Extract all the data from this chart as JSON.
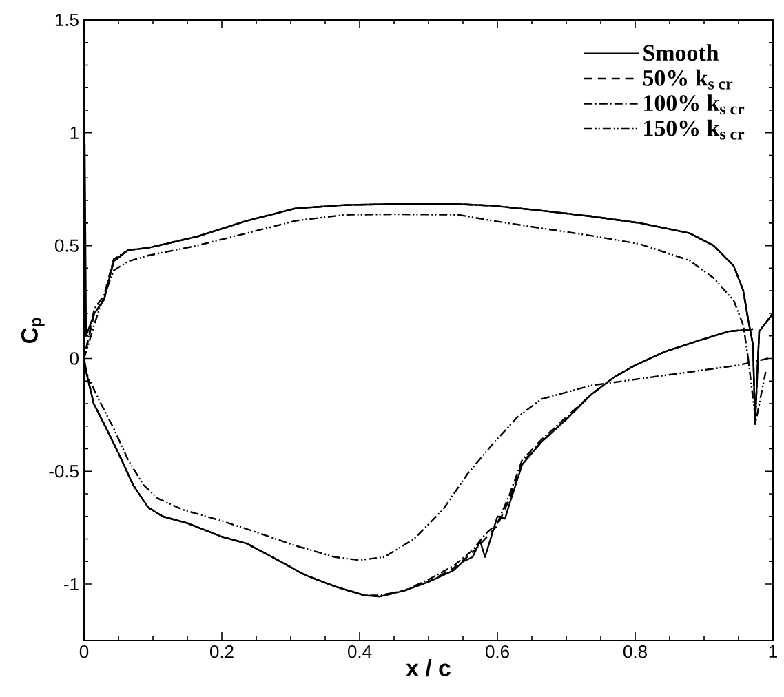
{
  "chart_data": {
    "type": "line",
    "xlabel": "x / c",
    "ylabel": "C$_{p}$",
    "xlim": [
      0,
      1
    ],
    "ylim": [
      -1.25,
      1.5
    ],
    "xticks": [
      0,
      0.2,
      0.4,
      0.6,
      0.8,
      1
    ],
    "yticks": [
      -1,
      -0.5,
      0,
      0.5,
      1,
      1.5
    ],
    "legend": "top right",
    "grid": false,
    "marker": "none",
    "series": [
      {
        "name": "\\text{Smooth}",
        "color": "#000000",
        "line_style": "solid",
        "x": [
          0.971,
          0.936,
          0.893,
          0.843,
          0.8,
          0.771,
          0.736,
          0.7,
          0.664,
          0.636,
          0.618,
          0.611,
          0.6,
          0.582,
          0.575,
          0.564,
          0.55,
          0.536,
          0.5,
          0.464,
          0.429,
          0.407,
          0.364,
          0.321,
          0.279,
          0.236,
          0.2,
          0.15,
          0.114,
          0.093,
          0.071,
          0.05,
          0.029,
          0.014,
          0.004,
          0,
          0.001,
          0.003,
          0.015,
          0.029,
          0.043,
          0.064,
          0.093,
          0.164,
          0.236,
          0.307,
          0.379,
          0.45,
          0.543,
          0.593,
          0.664,
          0.736,
          0.807,
          0.879,
          0.914,
          0.943,
          0.957,
          0.964,
          0.971,
          0.974,
          0.98,
          1
        ],
        "values": [
          0.13,
          0.12,
          0.08,
          0.03,
          -0.03,
          -0.08,
          -0.16,
          -0.27,
          -0.37,
          -0.47,
          -0.64,
          -0.71,
          -0.7,
          -0.88,
          -0.81,
          -0.88,
          -0.9,
          -0.94,
          -0.99,
          -1.03,
          -1.055,
          -1.05,
          -1.01,
          -0.96,
          -0.89,
          -0.82,
          -0.79,
          -0.73,
          -0.7,
          -0.66,
          -0.56,
          -0.42,
          -0.29,
          -0.2,
          -0.07,
          0,
          0.95,
          0.1,
          0.2,
          0.26,
          0.43,
          0.48,
          0.49,
          0.54,
          0.61,
          0.665,
          0.68,
          0.684,
          0.684,
          0.677,
          0.655,
          0.63,
          0.6,
          0.555,
          0.5,
          0.41,
          0.3,
          0.17,
          0.06,
          -0.29,
          0.12,
          0.2
        ]
      },
      {
        "name": "\\text{50\\% k}_{\\text{s cr}}",
        "color": "#000000",
        "line_style": "dashed",
        "x": [
          0.971,
          0.936,
          0.893,
          0.843,
          0.8,
          0.771,
          0.736,
          0.7,
          0.664,
          0.636,
          0.618,
          0.6,
          0.582,
          0.564,
          0.536,
          0.5,
          0.464,
          0.429,
          0.407,
          0.364,
          0.321,
          0.279,
          0.236,
          0.2,
          0.15,
          0.114,
          0.093,
          0.071,
          0.05,
          0.029,
          0.014,
          0.004,
          0,
          0.015,
          0.029,
          0.043,
          0.064,
          0.093,
          0.164,
          0.236,
          0.307,
          0.379,
          0.45,
          0.543,
          0.593,
          0.664,
          0.736,
          0.807,
          0.879,
          0.914,
          0.943,
          0.957,
          0.964,
          0.971,
          0.974,
          0.98,
          1
        ],
        "values": [
          0.13,
          0.12,
          0.08,
          0.03,
          -0.03,
          -0.08,
          -0.16,
          -0.27,
          -0.37,
          -0.46,
          -0.62,
          -0.74,
          -0.8,
          -0.86,
          -0.93,
          -0.99,
          -1.03,
          -1.055,
          -1.05,
          -1.01,
          -0.96,
          -0.89,
          -0.82,
          -0.79,
          -0.73,
          -0.7,
          -0.66,
          -0.56,
          -0.42,
          -0.29,
          -0.2,
          -0.07,
          0,
          0.2,
          0.26,
          0.43,
          0.48,
          0.49,
          0.54,
          0.61,
          0.665,
          0.68,
          0.684,
          0.684,
          0.677,
          0.655,
          0.63,
          0.6,
          0.555,
          0.5,
          0.41,
          0.3,
          0.17,
          0.06,
          -0.29,
          0.12,
          0.2
        ]
      },
      {
        "name": "\\text{100\\% k}_{\\text{s cr}}",
        "color": "#000000",
        "line_style": "dashdot",
        "x": [
          0.971,
          0.936,
          0.893,
          0.843,
          0.8,
          0.771,
          0.736,
          0.7,
          0.664,
          0.636,
          0.618,
          0.6,
          0.582,
          0.564,
          0.536,
          0.5,
          0.464,
          0.429,
          0.407,
          0.364,
          0.321,
          0.279,
          0.236,
          0.2,
          0.15,
          0.114,
          0.093,
          0.071,
          0.05,
          0.029,
          0.014,
          0.004,
          0,
          0.015,
          0.029,
          0.043,
          0.064,
          0.093,
          0.164,
          0.236,
          0.307,
          0.379,
          0.45,
          0.543,
          0.593,
          0.664,
          0.736,
          0.807,
          0.879,
          0.914,
          0.943,
          0.957,
          0.964,
          0.971,
          0.974,
          0.98,
          1
        ],
        "values": [
          0.13,
          0.12,
          0.08,
          0.03,
          -0.03,
          -0.08,
          -0.16,
          -0.26,
          -0.36,
          -0.45,
          -0.6,
          -0.73,
          -0.78,
          -0.85,
          -0.92,
          -0.98,
          -1.03,
          -1.05,
          -1.05,
          -1.01,
          -0.96,
          -0.89,
          -0.82,
          -0.79,
          -0.73,
          -0.7,
          -0.66,
          -0.56,
          -0.42,
          -0.29,
          -0.2,
          -0.07,
          0,
          0.22,
          0.28,
          0.44,
          0.48,
          0.49,
          0.54,
          0.61,
          0.665,
          0.68,
          0.684,
          0.684,
          0.677,
          0.655,
          0.63,
          0.6,
          0.555,
          0.5,
          0.41,
          0.3,
          0.17,
          0.06,
          -0.29,
          0.12,
          0.2
        ]
      },
      {
        "name": "\\text{150\\% k}_{\\text{s cr}}",
        "color": "#000000",
        "line_style": "dashdotdot",
        "x": [
          0.993,
          0.95,
          0.879,
          0.807,
          0.736,
          0.664,
          0.629,
          0.593,
          0.557,
          0.521,
          0.479,
          0.436,
          0.4,
          0.364,
          0.307,
          0.25,
          0.2,
          0.143,
          0.107,
          0.086,
          0.064,
          0.043,
          0.021,
          0.004,
          0,
          0.02,
          0.043,
          0.064,
          0.093,
          0.164,
          0.236,
          0.307,
          0.379,
          0.45,
          0.543,
          0.593,
          0.664,
          0.736,
          0.807,
          0.879,
          0.914,
          0.943,
          0.957,
          0.964,
          0.975,
          0.99
        ],
        "values": [
          0,
          -0.03,
          -0.06,
          -0.09,
          -0.12,
          -0.18,
          -0.26,
          -0.38,
          -0.51,
          -0.67,
          -0.8,
          -0.88,
          -0.894,
          -0.88,
          -0.83,
          -0.77,
          -0.72,
          -0.67,
          -0.62,
          -0.56,
          -0.45,
          -0.31,
          -0.18,
          -0.07,
          0,
          0.2,
          0.39,
          0.43,
          0.456,
          0.5,
          0.555,
          0.61,
          0.637,
          0.639,
          0.637,
          0.61,
          0.577,
          0.544,
          0.507,
          0.434,
          0.356,
          0.257,
          0.146,
          0,
          -0.28,
          -0.05
        ]
      }
    ]
  }
}
